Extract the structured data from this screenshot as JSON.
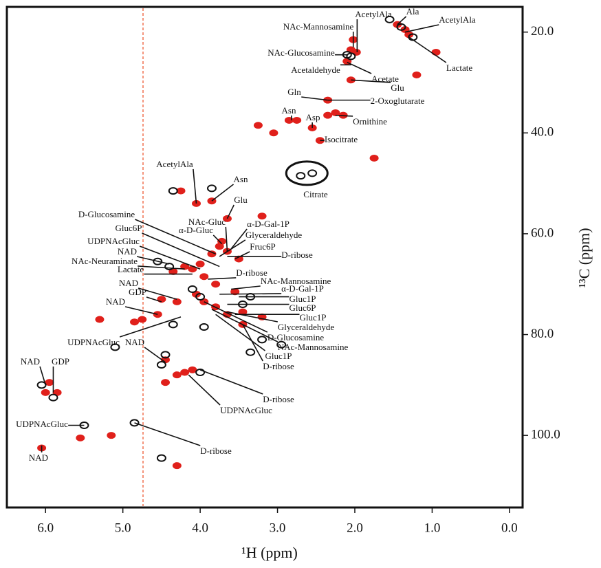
{
  "chart_data": {
    "type": "scatter",
    "xlabel": "¹H (ppm)",
    "ylabel": "¹³C (ppm)",
    "xlim": [
      6.5,
      -0.17
    ],
    "ylim": [
      15,
      114.3
    ],
    "xticks": [
      {
        "value": 6,
        "label": "6.0"
      },
      {
        "value": 5,
        "label": "5.0"
      },
      {
        "value": 4,
        "label": "4.0"
      },
      {
        "value": 3,
        "label": "3.0"
      },
      {
        "value": 2,
        "label": "2.0"
      },
      {
        "value": 1,
        "label": "1.0"
      },
      {
        "value": 0,
        "label": "0.0"
      }
    ],
    "yticks": [
      {
        "value": 20,
        "label": "20.0"
      },
      {
        "value": 40,
        "label": "40.0"
      },
      {
        "value": 60,
        "label": "60.0"
      },
      {
        "value": 80,
        "label": "80.0"
      },
      {
        "value": 100,
        "label": "100.0"
      }
    ],
    "series": [
      {
        "color": "#e0201b",
        "x": [
          1.45,
          1.35,
          1.3,
          2.02,
          2.05,
          1.98,
          2.1,
          1.2,
          0.95,
          2.05,
          2.35,
          2.25,
          2.35,
          2.15,
          2.85,
          2.75,
          2.55,
          2.45,
          3.25,
          3.05,
          1.75,
          4.25,
          4.05,
          3.85,
          3.65,
          3.2,
          3.72,
          3.85,
          3.75,
          3.65,
          3.5,
          4.0,
          4.1,
          3.95,
          3.8,
          4.2,
          4.35,
          4.5,
          4.3,
          4.05,
          3.95,
          3.55,
          3.45,
          3.2,
          3.45,
          3.65,
          3.8,
          4.55,
          4.75,
          4.85,
          5.3,
          4.45,
          4.2,
          4.1,
          4.3,
          4.45,
          5.95,
          6.0,
          5.85,
          5.55,
          6.05,
          5.15,
          4.3
        ],
        "y": [
          18.5,
          19.5,
          20.5,
          21.5,
          23.5,
          24.0,
          25.8,
          28.5,
          24.0,
          29.5,
          33.5,
          36.0,
          36.5,
          36.5,
          37.5,
          37.5,
          39.0,
          41.5,
          38.5,
          40.0,
          45.0,
          51.5,
          54.0,
          53.5,
          57.0,
          56.5,
          61.5,
          64.0,
          62.5,
          63.5,
          65.0,
          66.0,
          67.0,
          68.5,
          70.0,
          66.5,
          67.5,
          73.0,
          73.5,
          72.0,
          73.5,
          71.5,
          75.5,
          76.5,
          78.0,
          76.0,
          74.5,
          76.0,
          77.0,
          77.5,
          77.0,
          85.0,
          87.5,
          87.0,
          88.0,
          89.5,
          89.5,
          91.5,
          91.5,
          100.5,
          102.5,
          100.0,
          106.0
        ]
      },
      {
        "color": "#111111",
        "x": [
          1.55,
          1.4,
          1.25,
          2.1,
          2.05,
          2.55,
          2.7,
          4.35,
          3.85,
          4.4,
          4.55,
          4.1,
          4.0,
          3.35,
          3.45,
          4.35,
          3.95,
          3.2,
          2.95,
          5.1,
          4.45,
          4.5,
          4.0,
          5.5,
          4.85,
          4.5,
          6.05,
          5.9,
          3.35
        ],
        "y": [
          17.5,
          19.0,
          21.0,
          24.5,
          24.8,
          48.0,
          48.5,
          51.5,
          51.0,
          66.5,
          65.5,
          71.0,
          72.5,
          72.5,
          74.0,
          78.0,
          78.5,
          81.0,
          82.0,
          82.5,
          84.0,
          86.0,
          87.5,
          98.0,
          97.5,
          104.5,
          90.0,
          92.5,
          83.5
        ]
      }
    ],
    "annotations": [
      {
        "text": "AcetylAla",
        "x": 1.97,
        "y": 24
      },
      {
        "text": "Ala",
        "x": 1.45,
        "y": 18.5
      },
      {
        "text": "AcetylAla",
        "x": 1.35,
        "y": 20
      },
      {
        "text": "NAc-Mannosamine",
        "x": 2.02,
        "y": 23
      },
      {
        "text": "NAc-Glucosamine",
        "x": 2.1,
        "y": 24.5
      },
      {
        "text": "Lactate",
        "x": 1.3,
        "y": 21
      },
      {
        "text": "Acetaldehyde",
        "x": 2.05,
        "y": 26.5
      },
      {
        "text": "Acetate",
        "x": 2.1,
        "y": 26
      },
      {
        "text": "Glu",
        "x": 2.05,
        "y": 29.5
      },
      {
        "text": "Gln",
        "x": 2.35,
        "y": 33.5
      },
      {
        "text": "2-Oxoglutarate",
        "x": 2.35,
        "y": 33.5
      },
      {
        "text": "Asn",
        "x": 2.82,
        "y": 37.5
      },
      {
        "text": "Asp",
        "x": 2.55,
        "y": 39
      },
      {
        "text": "Ornithine",
        "x": 2.25,
        "y": 36.5
      },
      {
        "text": "Isocitrate",
        "x": 2.45,
        "y": 41.5
      },
      {
        "text": "Citrate",
        "x": 2.62,
        "y": 48
      },
      {
        "text": "AcetylAla",
        "x": 4.05,
        "y": 54
      },
      {
        "text": "Asn",
        "x": 3.85,
        "y": 53.5
      },
      {
        "text": "Glu",
        "x": 3.65,
        "y": 57
      },
      {
        "text": "D-Glucosamine",
        "x": 3.8,
        "y": 64
      },
      {
        "text": "Gluc6P",
        "x": 3.75,
        "y": 66.5
      },
      {
        "text": "NAc-Gluc",
        "x": 3.65,
        "y": 63.5
      },
      {
        "text": "α-D-Gluc",
        "x": 3.72,
        "y": 62
      },
      {
        "text": "α-D-Gal-1P",
        "x": 3.6,
        "y": 63
      },
      {
        "text": "Glyceraldehyde",
        "x": 3.75,
        "y": 64.5
      },
      {
        "text": "UDPNAcGluc",
        "x": 4.0,
        "y": 67
      },
      {
        "text": "Fruc6P",
        "x": 3.55,
        "y": 65
      },
      {
        "text": "NAD",
        "x": 4.4,
        "y": 66
      },
      {
        "text": "NAc-Neuraminate",
        "x": 4.2,
        "y": 67
      },
      {
        "text": "D-ribose",
        "x": 3.65,
        "y": 64.5
      },
      {
        "text": "Lactate",
        "x": 4.1,
        "y": 68
      },
      {
        "text": "D-ribose",
        "x": 3.9,
        "y": 69
      },
      {
        "text": "NAc-Mannosamine",
        "x": 3.6,
        "y": 71
      },
      {
        "text": "NAD",
        "x": 4.3,
        "y": 73
      },
      {
        "text": "α-D-Gal-1P",
        "x": 3.75,
        "y": 72
      },
      {
        "text": "GDP",
        "x": 4.5,
        "y": 73.5
      },
      {
        "text": "Gluc1P",
        "x": 3.5,
        "y": 72.5
      },
      {
        "text": "NAD",
        "x": 4.55,
        "y": 76
      },
      {
        "text": "Gluc6P",
        "x": 3.65,
        "y": 74
      },
      {
        "text": "Gluc1P",
        "x": 3.55,
        "y": 76
      },
      {
        "text": "Glyceraldehyde",
        "x": 3.65,
        "y": 75.5
      },
      {
        "text": "UDPNAcGluc",
        "x": 4.25,
        "y": 76.5
      },
      {
        "text": "D-Glucosamine",
        "x": 3.95,
        "y": 73.5
      },
      {
        "text": "NAc-Mannosamine",
        "x": 3.85,
        "y": 75
      },
      {
        "text": "NAD",
        "x": 4.45,
        "y": 85.5
      },
      {
        "text": "Gluc1P",
        "x": 3.8,
        "y": 76
      },
      {
        "text": "D-ribose",
        "x": 3.45,
        "y": 78
      },
      {
        "text": "D-ribose",
        "x": 4.0,
        "y": 87
      },
      {
        "text": "UDPNAcGluc",
        "x": 4.15,
        "y": 88
      },
      {
        "text": "NAD",
        "x": 6.0,
        "y": 90
      },
      {
        "text": "GDP",
        "x": 5.9,
        "y": 91.5
      },
      {
        "text": "UDPNAcGluc",
        "x": 5.5,
        "y": 98
      },
      {
        "text": "NAD",
        "x": 6.05,
        "y": 102
      },
      {
        "text": "D-ribose",
        "x": 4.85,
        "y": 97.5
      }
    ]
  }
}
